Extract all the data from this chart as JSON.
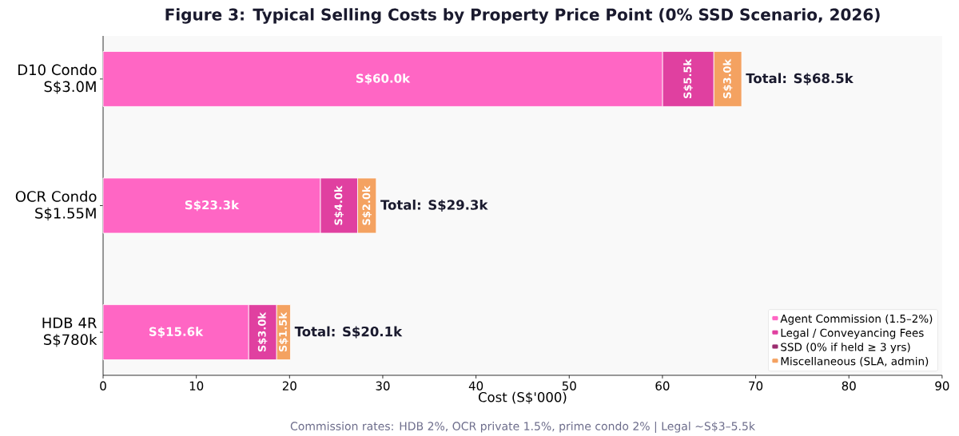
{
  "chart_data": {
    "type": "bar",
    "orientation": "horizontal",
    "stacked": true,
    "title": "Figure 3: Typical Selling Costs by Property Price Point (0% SSD Scenario, 2026)",
    "xlabel": "Cost (S$'000)",
    "annotations": [
      "Commission rates: HDB 2%, OCR private 1.5%, prime condo 2% | Legal ~S$3–5.5k"
    ],
    "categories": [
      "D10 Condo S$3.0M",
      "OCR Condo S$1.55M",
      "HDB 4R S$780k"
    ],
    "series": [
      {
        "name": "Agent Commission (1.5–2%)",
        "color": "#ff66c4",
        "values": [
          60.0,
          23.3,
          15.6
        ],
        "value_labels": [
          "S$60.0k",
          "S$23.3k",
          "S$15.6k"
        ]
      },
      {
        "name": "Legal / Conveyancing Fees",
        "color": "#e040a0",
        "values": [
          5.5,
          4.0,
          3.0
        ],
        "value_labels": [
          "S$5.5k",
          "S$4.0k",
          "S$3.0k"
        ]
      },
      {
        "name": "SSD (0% if held ≥ 3 yrs)",
        "color": "#9b2d6f",
        "values": [
          0,
          0,
          0
        ]
      },
      {
        "name": "Miscellaneous (SLA, admin)",
        "color": "#f4a261",
        "values": [
          3.0,
          2.0,
          1.5
        ],
        "value_labels": [
          "S$3.0k",
          "S$2.0k",
          "S$1.5k"
        ]
      }
    ],
    "totals": [
      "Total: S$68.5k",
      "Total: S$29.3k",
      "Total: S$20.1k"
    ],
    "xlim": [
      0,
      90
    ],
    "xticks": [
      0,
      10,
      20,
      30,
      40,
      50,
      60,
      70,
      80,
      90
    ],
    "legend": "bottom right"
  }
}
